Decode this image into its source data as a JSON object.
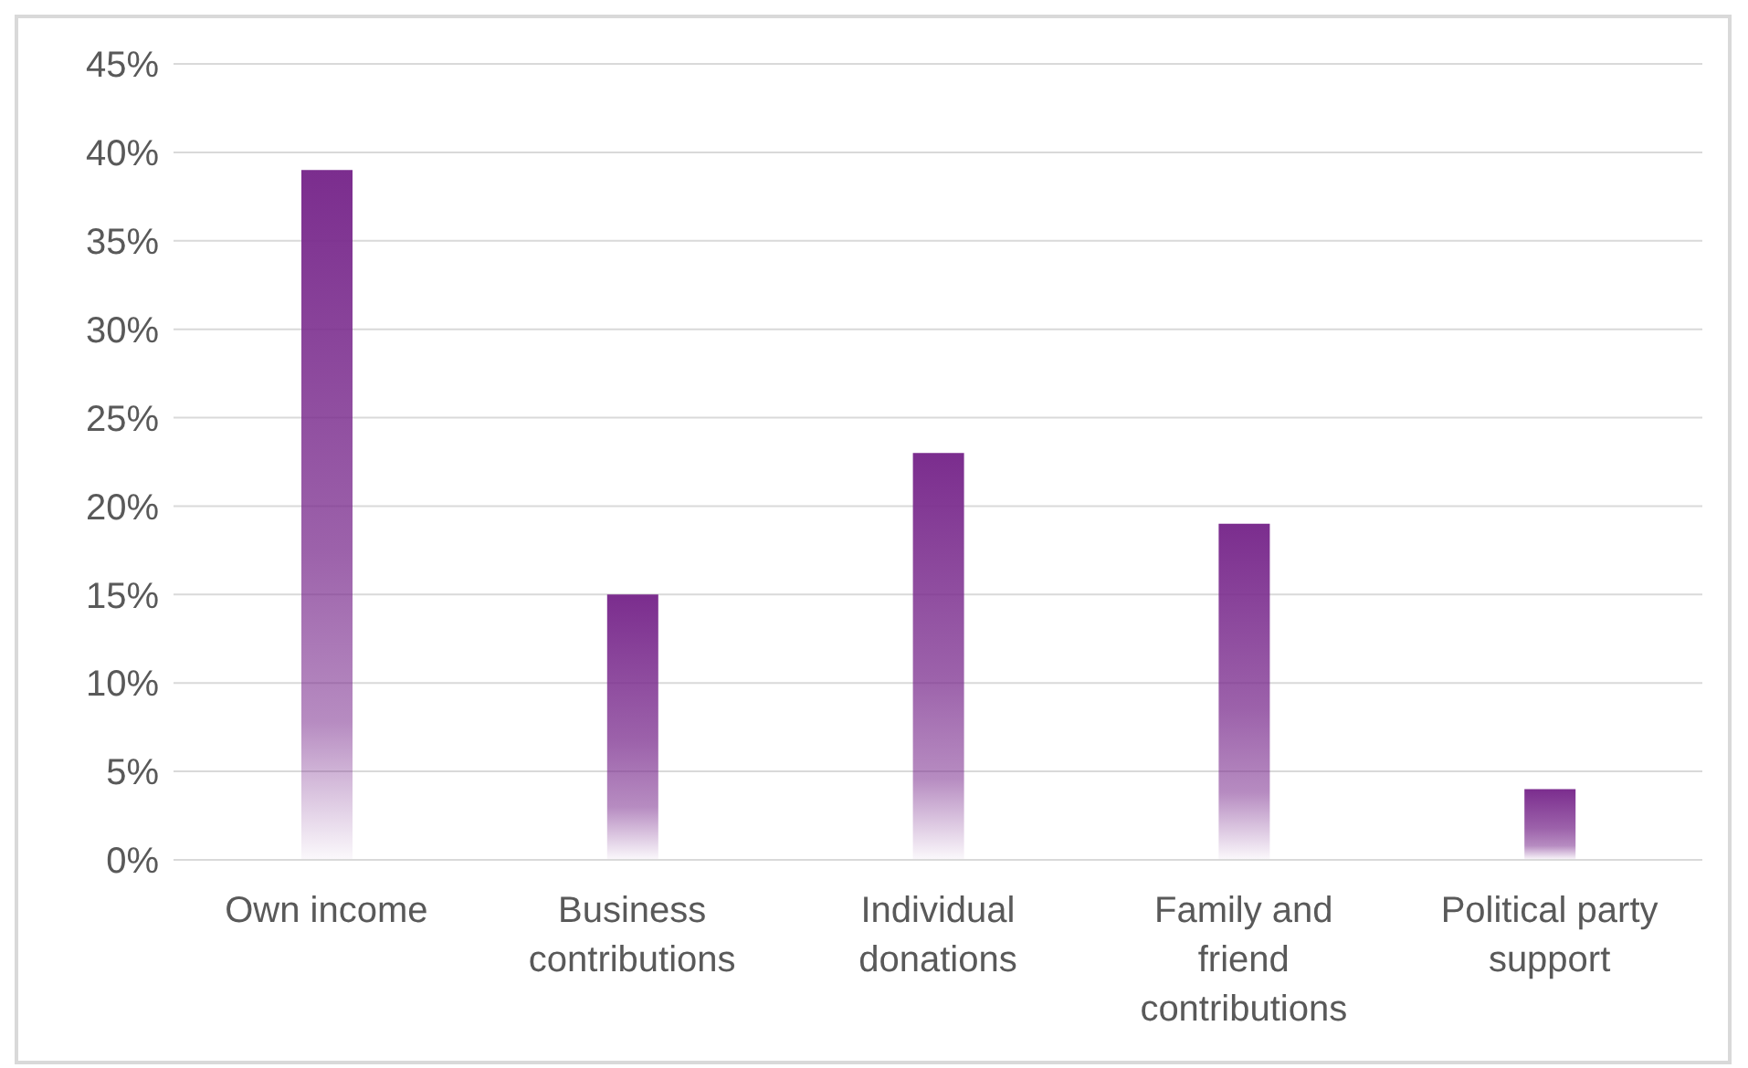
{
  "chart_data": {
    "type": "bar",
    "categories": [
      "Own income",
      "Business contributions",
      "Individual donations",
      "Family and friend contributions",
      "Political party support"
    ],
    "values": [
      39,
      15,
      23,
      19,
      4
    ],
    "color": "#7b2d8e",
    "ylim": [
      0,
      45
    ],
    "yticks": [
      {
        "value": 0,
        "label": "0%"
      },
      {
        "value": 5,
        "label": "5%"
      },
      {
        "value": 10,
        "label": "10%"
      },
      {
        "value": 15,
        "label": "15%"
      },
      {
        "value": 20,
        "label": "20%"
      },
      {
        "value": 25,
        "label": "25%"
      },
      {
        "value": 30,
        "label": "30%"
      },
      {
        "value": 35,
        "label": "35%"
      },
      {
        "value": 40,
        "label": "40%"
      },
      {
        "value": 45,
        "label": "45%"
      }
    ],
    "grid": "y",
    "legend": false
  }
}
